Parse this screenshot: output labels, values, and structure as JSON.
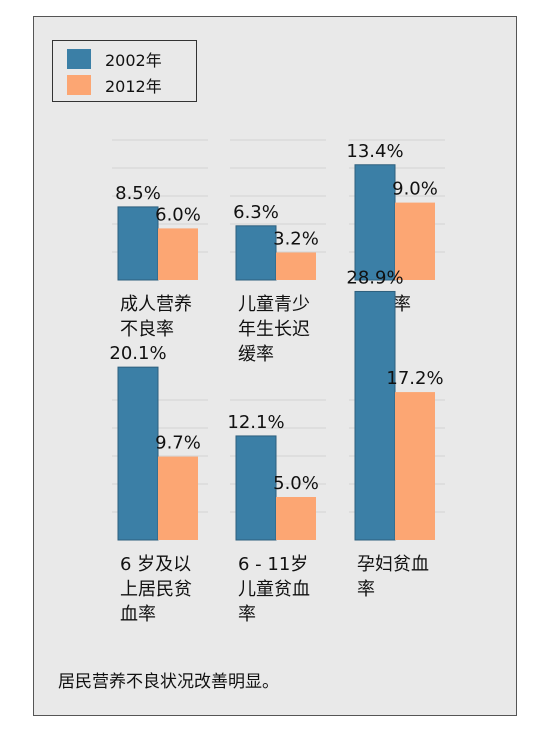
{
  "legend": {
    "series": [
      {
        "name": "2002年",
        "color": "#3b7fa6"
      },
      {
        "name": "2012年",
        "color": "#fca673"
      }
    ]
  },
  "footer": {
    "note": "居民营养不良状况改善明显。"
  },
  "chart_data": {
    "type": "bar",
    "series_names": [
      "2002年",
      "2012年"
    ],
    "colors": [
      "#3b7fa6",
      "#fca673"
    ],
    "groups": [
      {
        "category_lines": [
          "成人营养",
          "不良率"
        ],
        "values": [
          8.5,
          6.0
        ],
        "labels": [
          "8.5%",
          "6.0%"
        ]
      },
      {
        "category_lines": [
          "儿童青少",
          "年生长迟",
          "缓率"
        ],
        "values": [
          6.3,
          3.2
        ],
        "labels": [
          "6.3%",
          "3.2%"
        ]
      },
      {
        "category_lines": [
          "消瘦率"
        ],
        "values": [
          13.4,
          9.0
        ],
        "labels": [
          "13.4%",
          "9.0%"
        ]
      },
      {
        "category_lines": [
          "6 岁及以",
          "上居民贫",
          "血率"
        ],
        "values": [
          20.1,
          9.7
        ],
        "labels": [
          "20.1%",
          "9.7%"
        ]
      },
      {
        "category_lines": [
          "6 - 11岁",
          "儿童贫血",
          "率"
        ],
        "values": [
          12.1,
          5.0
        ],
        "labels": [
          "12.1%",
          "5.0%"
        ]
      },
      {
        "category_lines": [
          "孕妇贫血",
          "率"
        ],
        "values": [
          28.9,
          17.2
        ],
        "labels": [
          "28.9%",
          "17.2%"
        ]
      }
    ]
  }
}
